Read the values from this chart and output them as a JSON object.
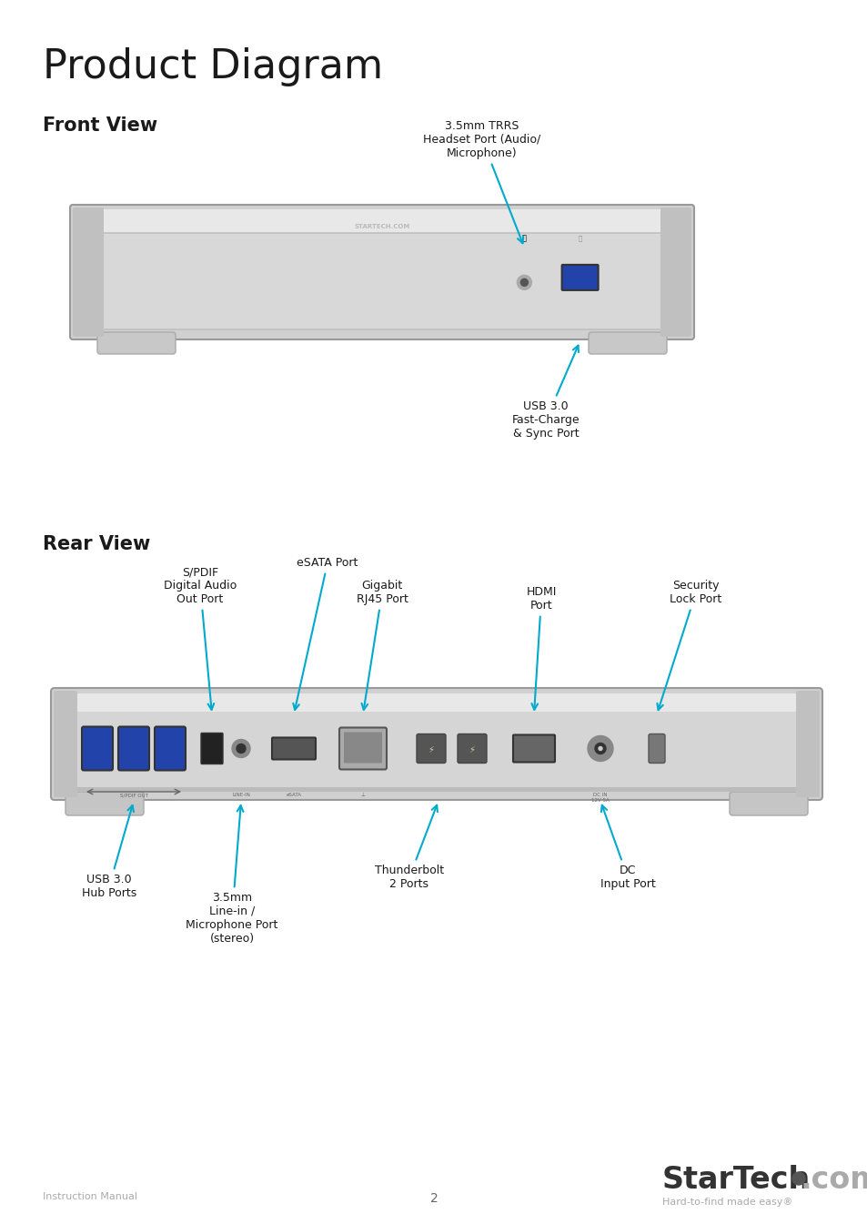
{
  "title": "Product Diagram",
  "front_view_label": "Front View",
  "rear_view_label": "Rear View",
  "bg_color": "#ffffff",
  "text_color": "#1a1a1a",
  "arrow_color": "#00aacc",
  "annotation_fontsize": 9.0,
  "section_label_fontsize": 15,
  "title_fontsize": 32,
  "footer_left": "Instruction Manual",
  "footer_center": "2",
  "footer_tagline": "Hard-to-find made easy®",
  "device_silver_light": "#e8e8e8",
  "device_silver_mid": "#d0d0d0",
  "device_silver_dark": "#b0b0b0",
  "device_edge": "#999999",
  "usb_blue": "#2244aa",
  "port_dark": "#444444",
  "port_mid": "#888888"
}
